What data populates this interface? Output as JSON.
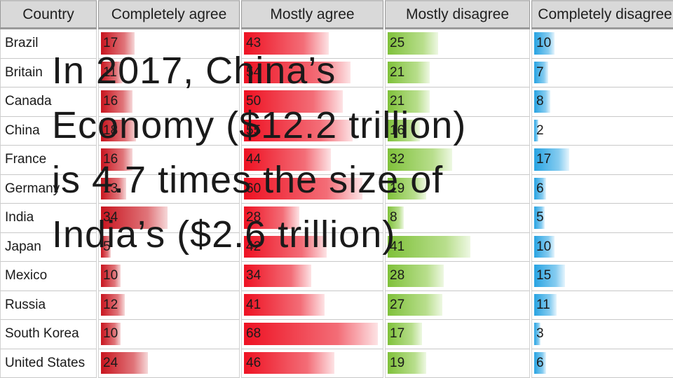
{
  "chart_data": {
    "type": "table",
    "columns": [
      "Country",
      "Completely agree",
      "Mostly agree",
      "Mostly disagree",
      "Completely disagree"
    ],
    "rows": [
      {
        "country": "Brazil",
        "values": [
          17,
          43,
          25,
          10
        ]
      },
      {
        "country": "Britain",
        "values": [
          11,
          54,
          21,
          7
        ]
      },
      {
        "country": "Canada",
        "values": [
          16,
          50,
          21,
          8
        ]
      },
      {
        "country": "China",
        "values": [
          18,
          55,
          16,
          2
        ]
      },
      {
        "country": "France",
        "values": [
          16,
          44,
          32,
          17
        ]
      },
      {
        "country": "Germany",
        "values": [
          13,
          60,
          19,
          6
        ]
      },
      {
        "country": "India",
        "values": [
          34,
          28,
          8,
          5
        ]
      },
      {
        "country": "Japan",
        "values": [
          5,
          42,
          41,
          10
        ]
      },
      {
        "country": "Mexico",
        "values": [
          10,
          34,
          28,
          15
        ]
      },
      {
        "country": "Russia",
        "values": [
          12,
          41,
          27,
          11
        ]
      },
      {
        "country": "South Korea",
        "values": [
          10,
          68,
          17,
          3
        ]
      },
      {
        "country": "United States",
        "values": [
          24,
          46,
          19,
          6
        ]
      }
    ],
    "column_colors": [
      "#c8141e",
      "#ee1122",
      "#7fc13a",
      "#27a3e2"
    ]
  },
  "overlay": {
    "lines": [
      "In 2017, China’s",
      "Economy ($12.2 trillion)",
      "is 4.7 times the size of",
      "India’s ($2.6 trillion)"
    ]
  }
}
